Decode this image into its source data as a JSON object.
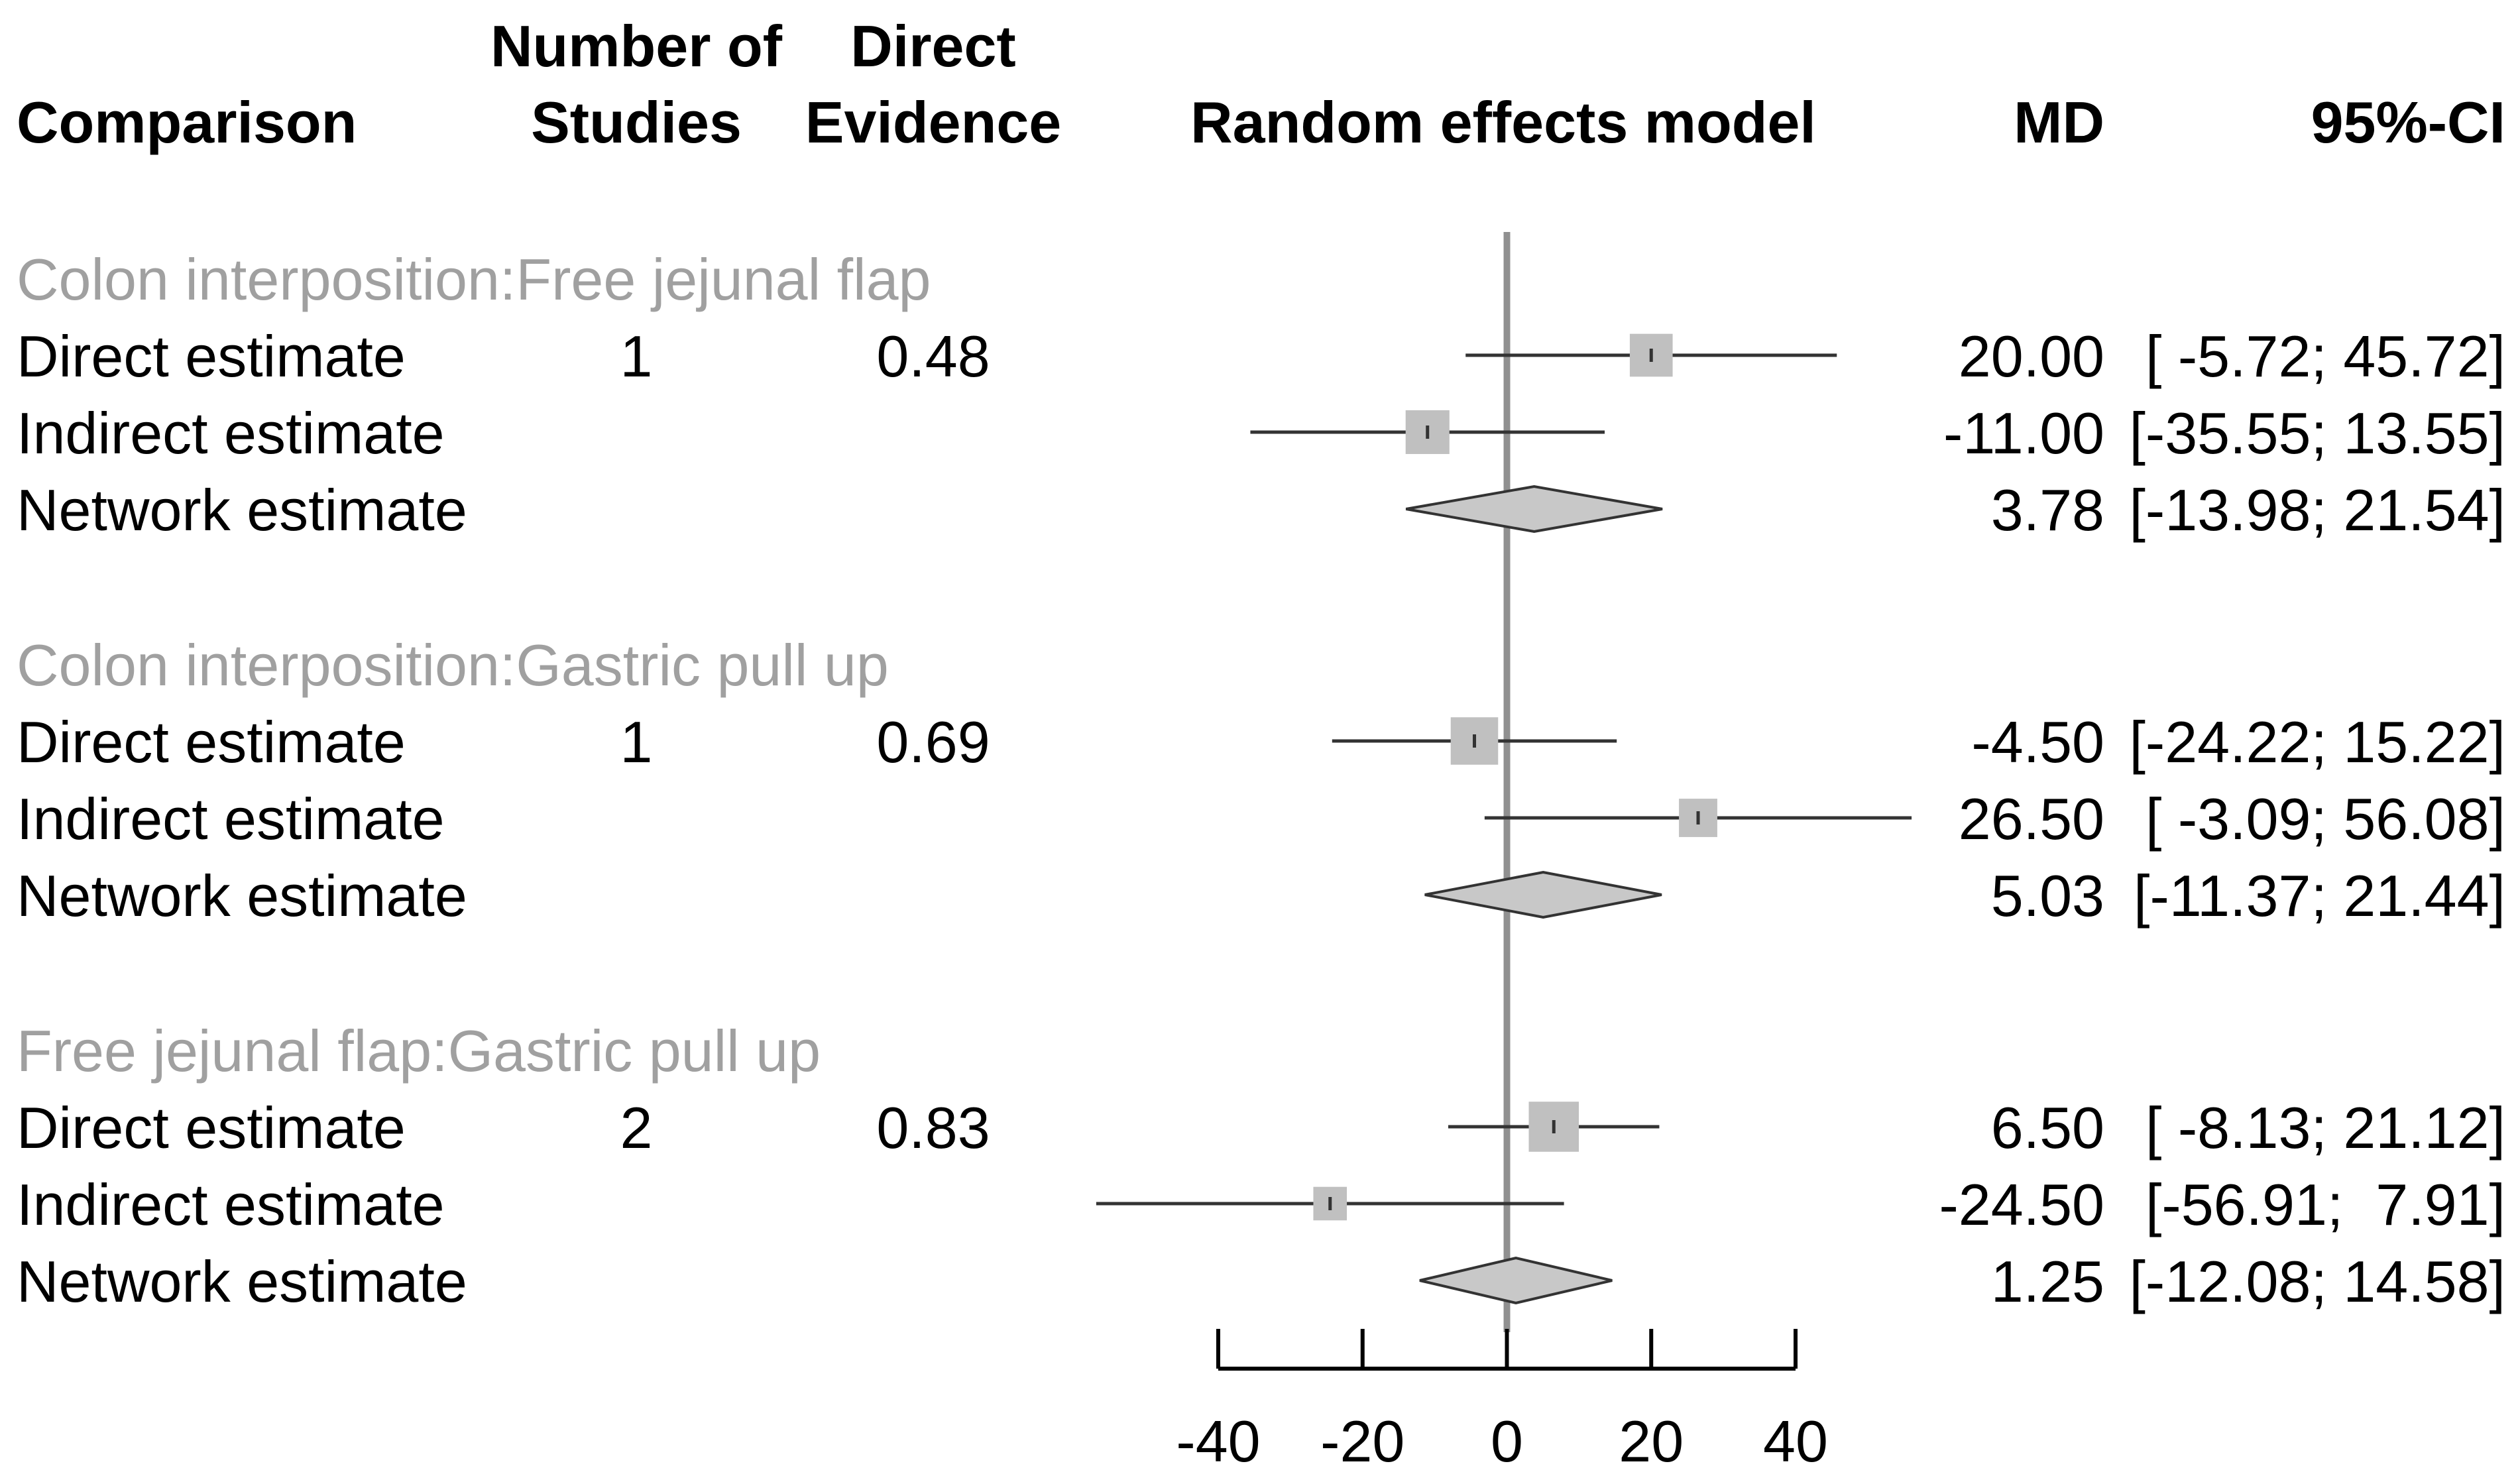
{
  "chart_data": {
    "type": "forest",
    "title": "Random effects model",
    "headers": {
      "comparison": "Comparison",
      "studies": [
        "Number of",
        "Studies"
      ],
      "evidence": [
        "Direct",
        "Evidence"
      ],
      "model": "Random effects model",
      "md": "MD",
      "ci": "95%-CI"
    },
    "xlim": [
      -40,
      40
    ],
    "xticks": [
      -40,
      -20,
      0,
      20,
      40
    ],
    "xtick_labels": [
      "-40",
      "-20",
      "0",
      "20",
      "40"
    ],
    "reference_line": 0,
    "colors": {
      "text": "#000000",
      "group_label": "#a0a0a0",
      "square": "#c0c0c0",
      "diamond": "#c8c8c8",
      "ref_line": "#909090",
      "ci_line": "#333333"
    },
    "groups": [
      {
        "label": "Colon interposition:Free jejunal flap",
        "rows": [
          {
            "kind": "direct",
            "label": "Direct estimate",
            "studies": "1",
            "evidence": "0.48",
            "md": 20.0,
            "lower": -5.72,
            "upper": 45.72,
            "md_text": "20.00",
            "ci_text": "[ -5.72; 45.72]",
            "weight": 0.48
          },
          {
            "kind": "indirect",
            "label": "Indirect estimate",
            "studies": "",
            "evidence": "",
            "md": -11.0,
            "lower": -35.55,
            "upper": 13.55,
            "md_text": "-11.00",
            "ci_text": "[-35.55; 13.55]",
            "weight": 0.52
          },
          {
            "kind": "network",
            "label": "Network estimate",
            "studies": "",
            "evidence": "",
            "md": 3.78,
            "lower": -13.98,
            "upper": 21.54,
            "md_text": "3.78",
            "ci_text": "[-13.98; 21.54]"
          }
        ]
      },
      {
        "label": "Colon interposition:Gastric pull up",
        "rows": [
          {
            "kind": "direct",
            "label": "Direct estimate",
            "studies": "1",
            "evidence": "0.69",
            "md": -4.5,
            "lower": -24.22,
            "upper": 15.22,
            "md_text": "-4.50",
            "ci_text": "[-24.22; 15.22]",
            "weight": 0.69
          },
          {
            "kind": "indirect",
            "label": "Indirect estimate",
            "studies": "",
            "evidence": "",
            "md": 26.5,
            "lower": -3.09,
            "upper": 56.08,
            "md_text": "26.50",
            "ci_text": "[ -3.09; 56.08]",
            "weight": 0.31
          },
          {
            "kind": "network",
            "label": "Network estimate",
            "studies": "",
            "evidence": "",
            "md": 5.03,
            "lower": -11.37,
            "upper": 21.44,
            "md_text": "5.03",
            "ci_text": "[-11.37; 21.44]"
          }
        ]
      },
      {
        "label": "Free jejunal flap:Gastric pull up",
        "rows": [
          {
            "kind": "direct",
            "label": "Direct estimate",
            "studies": "2",
            "evidence": "0.83",
            "md": 6.5,
            "lower": -8.13,
            "upper": 21.12,
            "md_text": "6.50",
            "ci_text": "[ -8.13; 21.12]",
            "weight": 0.83
          },
          {
            "kind": "indirect",
            "label": "Indirect estimate",
            "studies": "",
            "evidence": "",
            "md": -24.5,
            "lower": -56.91,
            "upper": 7.91,
            "md_text": "-24.50",
            "ci_text": "[-56.91;  7.91]",
            "weight": 0.17
          },
          {
            "kind": "network",
            "label": "Network estimate",
            "studies": "",
            "evidence": "",
            "md": 1.25,
            "lower": -12.08,
            "upper": 14.58,
            "md_text": "1.25",
            "ci_text": "[-12.08; 14.58]"
          }
        ]
      }
    ]
  }
}
